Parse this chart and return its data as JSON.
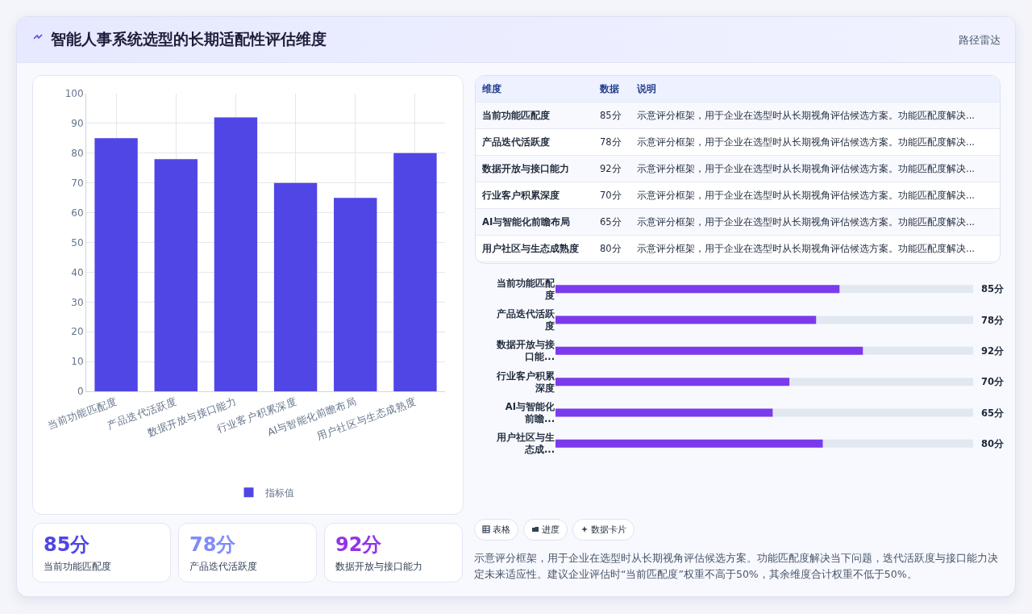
{
  "chart_data": [
    {
      "type": "bar",
      "title": "智能人事系统选型的长期适配性评估维度",
      "categories": [
        "当前功能匹配度",
        "产品迭代活跃度",
        "数据开放与接口能力",
        "行业客户积累深度",
        "AI与智能化前瞻布局",
        "用户社区与生态成熟度"
      ],
      "series": [
        {
          "name": "指标值",
          "color": "#4f46e5",
          "values": [
            85,
            78,
            92,
            70,
            65,
            80
          ]
        }
      ],
      "ylim": [
        0,
        100
      ],
      "yticks": [
        0,
        10,
        20,
        30,
        40,
        50,
        60,
        70,
        80,
        90,
        100
      ],
      "grid": true,
      "legend": "bottom"
    },
    {
      "type": "bar",
      "orientation": "horizontal",
      "categories": [
        "当前功能匹配度",
        "产品迭代活跃度",
        "数据开放与接口能...",
        "行业客户积累深度",
        "AI与智能化前瞻...",
        "用户社区与生态成..."
      ],
      "values": [
        85,
        78,
        92,
        70,
        65,
        80
      ],
      "value_labels": [
        "85分",
        "78分",
        "92分",
        "70分",
        "65分",
        "80分"
      ],
      "color": "#7c3aed",
      "xlim": [
        0,
        125
      ],
      "tick_labels": "y"
    },
    {
      "type": "other",
      "annotations": [
        "路径雷达",
        "维度",
        "数据",
        "说明",
        "当前功能匹配度",
        "85分",
        "示意评分框架，用于企业在选型时从长期视角评估候选方案。功能匹配度解决...",
        "产品迭代活跃度",
        "78分",
        "示意评分框架，用于企业在选型时从长期视角评估候选方案。功能匹配度解决...",
        "数据开放与接口能力",
        "92分",
        "示意评分框架，用于企业在选型时从长期视角评估候选方案。功能匹配度解决...",
        "行业客户积累深度",
        "70分",
        "示意评分框架，用于企业在选型时从长期视角评估候选方案。功能匹配度解决...",
        "AI与智能化前瞻布局",
        "65分",
        "示意评分框架，用于企业在选型时从长期视角评估候选方案。功能匹配度解决...",
        "用户社区与生态成熟度",
        "80分",
        "示意评分框架，用于企业在选型时从长期视角评估候选方案。功能匹配度解决...",
        "85分",
        "当前功能匹配度",
        "78分",
        "产品迭代活跃度",
        "92分",
        "数据开放与接口能力",
        "表格",
        "进度",
        "数据卡片",
        "示意评分框架，用于企业在选型时从长期视角评估候选方案。功能匹配度解决当下问题，迭代活跃度与接口能力决定未来适应性。建议企业评估时“当前匹配度”权重不高于50%，其余维度合计权重不低于50%。"
      ]
    }
  ]
}
